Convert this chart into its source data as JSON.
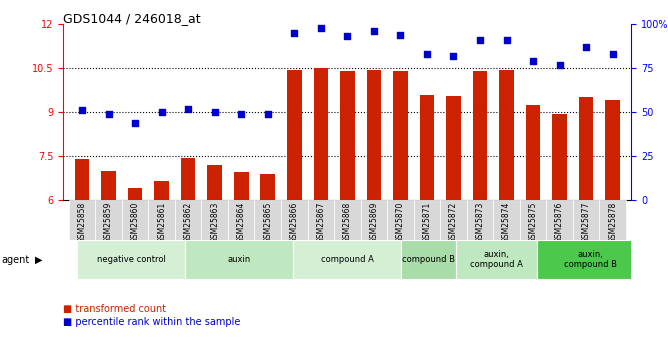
{
  "title": "GDS1044 / 246018_at",
  "samples": [
    "GSM25858",
    "GSM25859",
    "GSM25860",
    "GSM25861",
    "GSM25862",
    "GSM25863",
    "GSM25864",
    "GSM25865",
    "GSM25866",
    "GSM25867",
    "GSM25868",
    "GSM25869",
    "GSM25870",
    "GSM25871",
    "GSM25872",
    "GSM25873",
    "GSM25874",
    "GSM25875",
    "GSM25876",
    "GSM25877",
    "GSM25878"
  ],
  "bar_values": [
    7.4,
    7.0,
    6.4,
    6.65,
    7.45,
    7.2,
    6.95,
    6.9,
    10.45,
    10.52,
    10.4,
    10.45,
    10.4,
    9.6,
    9.55,
    10.4,
    10.45,
    9.25,
    8.95,
    9.5,
    9.4
  ],
  "dot_values": [
    51,
    49,
    44,
    50,
    52,
    50,
    49,
    49,
    95,
    98,
    93,
    96,
    94,
    83,
    82,
    91,
    91,
    79,
    77,
    87,
    83
  ],
  "bar_color": "#cc2200",
  "dot_color": "#0000cc",
  "ylim_left": [
    6,
    12
  ],
  "ylim_right": [
    0,
    100
  ],
  "yticks_left": [
    6,
    7.5,
    9,
    10.5,
    12
  ],
  "ytick_labels_left": [
    "6",
    "7.5",
    "9",
    "10.5",
    "12"
  ],
  "yticks_right": [
    0,
    25,
    50,
    75,
    100
  ],
  "ytick_labels_right": [
    "0",
    "25",
    "50",
    "75",
    "100%"
  ],
  "grid_values": [
    7.5,
    9.0,
    10.5
  ],
  "agent_groups": [
    {
      "label": "negative control",
      "start": 0,
      "end": 4,
      "color": "#d4efd4"
    },
    {
      "label": "auxin",
      "start": 4,
      "end": 8,
      "color": "#c0e8c0"
    },
    {
      "label": "compound A",
      "start": 8,
      "end": 12,
      "color": "#d4efd4"
    },
    {
      "label": "compound B",
      "start": 12,
      "end": 14,
      "color": "#a8dca8"
    },
    {
      "label": "auxin,\ncompound A",
      "start": 14,
      "end": 17,
      "color": "#c0e8c0"
    },
    {
      "label": "auxin,\ncompound B",
      "start": 17,
      "end": 21,
      "color": "#4cc84c"
    }
  ],
  "legend_bar_label": "transformed count",
  "legend_dot_label": "percentile rank within the sample",
  "bar_width": 0.55
}
